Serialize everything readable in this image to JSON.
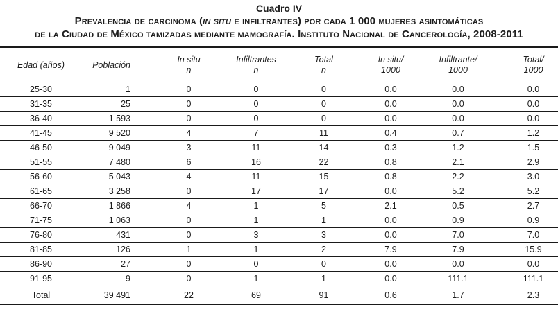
{
  "caption": {
    "number": "Cuadro IV",
    "line2_segments": [
      {
        "text": "Prevalencia de carcinoma (",
        "italic": false
      },
      {
        "text": "in situ",
        "italic": true
      },
      {
        "text": " e infiltrantes) por cada 1 000 mujeres asintomáticas",
        "italic": false
      }
    ],
    "line3": "de la Ciudad de México tamizadas mediante mamografía. Instituto Nacional de Cancerología, 2008-2011"
  },
  "table": {
    "columns": [
      {
        "label": "Edad (años)",
        "sub": ""
      },
      {
        "label": "Población",
        "sub": ""
      },
      {
        "label": "In situ",
        "sub": "n"
      },
      {
        "label": "Infiltrantes",
        "sub": "n"
      },
      {
        "label": "Total",
        "sub": "n"
      },
      {
        "label": "In situ/",
        "sub": "1000"
      },
      {
        "label": "Infiltrante/",
        "sub": "1000"
      },
      {
        "label": "Total/",
        "sub": "1000"
      }
    ],
    "rows": [
      [
        "25-30",
        "1",
        "0",
        "0",
        "0",
        "0.0",
        "0.0",
        "0.0"
      ],
      [
        "31-35",
        "25",
        "0",
        "0",
        "0",
        "0.0",
        "0.0",
        "0.0"
      ],
      [
        "36-40",
        "1 593",
        "0",
        "0",
        "0",
        "0.0",
        "0.0",
        "0.0"
      ],
      [
        "41-45",
        "9 520",
        "4",
        "7",
        "11",
        "0.4",
        "0.7",
        "1.2"
      ],
      [
        "46-50",
        "9 049",
        "3",
        "11",
        "14",
        "0.3",
        "1.2",
        "1.5"
      ],
      [
        "51-55",
        "7 480",
        "6",
        "16",
        "22",
        "0.8",
        "2.1",
        "2.9"
      ],
      [
        "56-60",
        "5 043",
        "4",
        "11",
        "15",
        "0.8",
        "2.2",
        "3.0"
      ],
      [
        "61-65",
        "3 258",
        "0",
        "17",
        "17",
        "0.0",
        "5.2",
        "5.2"
      ],
      [
        "66-70",
        "1 866",
        "4",
        "1",
        "5",
        "2.1",
        "0.5",
        "2.7"
      ],
      [
        "71-75",
        "1 063",
        "0",
        "1",
        "1",
        "0.0",
        "0.9",
        "0.9"
      ],
      [
        "76-80",
        "431",
        "0",
        "3",
        "3",
        "0.0",
        "7.0",
        "7.0"
      ],
      [
        "81-85",
        "126",
        "1",
        "1",
        "2",
        "7.9",
        "7.9",
        "15.9"
      ],
      [
        "86-90",
        "27",
        "0",
        "0",
        "0",
        "0.0",
        "0.0",
        "0.0"
      ],
      [
        "91-95",
        "9",
        "0",
        "1",
        "1",
        "0.0",
        "111.1",
        "111.1"
      ]
    ],
    "total_row": [
      "Total",
      "39 491",
      "22",
      "69",
      "91",
      "0.6",
      "1.7",
      "2.3"
    ]
  }
}
